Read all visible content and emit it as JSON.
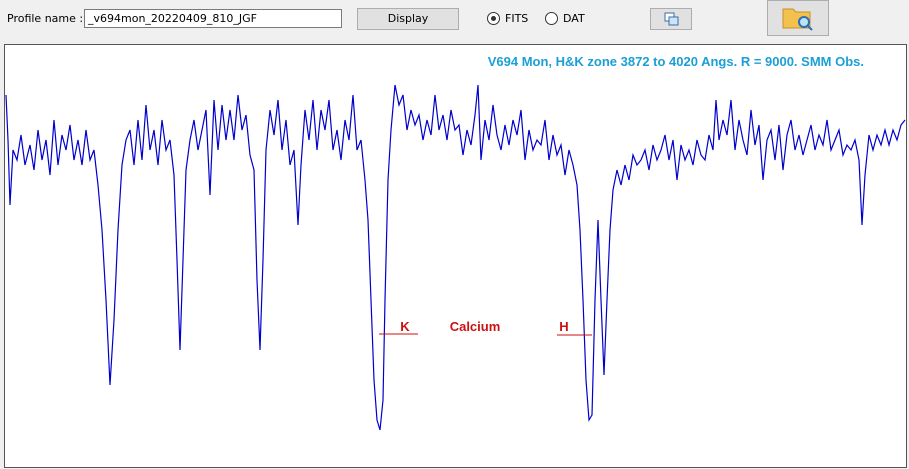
{
  "toolbar": {
    "profile_label": "Profile name :",
    "profile_value": "_v694mon_20220409_810_JGF",
    "display_button": "Display",
    "radio_fits": "FITS",
    "radio_dat": "DAT"
  },
  "plot": {
    "title": "V694 Mon, H&K zone 3872 to 4020 Angs. R = 9000. SMM Obs.",
    "marker_k": "K",
    "marker_element": "Calcium",
    "marker_h": "H"
  }
}
